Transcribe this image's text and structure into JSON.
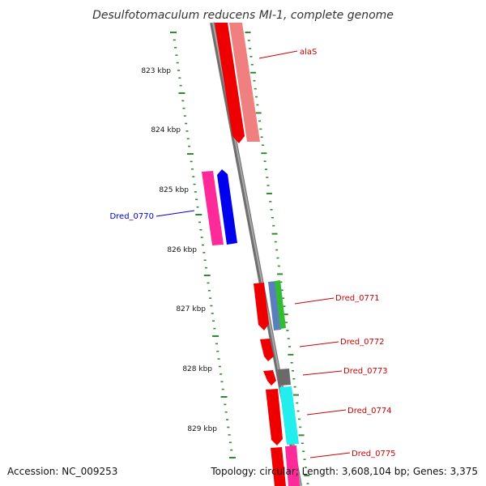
{
  "title": "Desulfotomaculum reducens MI-1, complete genome",
  "accession": "Accession: NC_009253",
  "summary": "Topology: circular; Length: 3,608,104 bp; Genes: 3,375",
  "colors": {
    "backbone": "#777777",
    "tick": "#2e8b2e",
    "forward_label": "#cc0000",
    "reverse_label": "#0000cc"
  },
  "ticks": [
    {
      "label": "823 kbp"
    },
    {
      "label": "824 kbp"
    },
    {
      "label": "825 kbp"
    },
    {
      "label": "826 kbp"
    },
    {
      "label": "827 kbp"
    },
    {
      "label": "828 kbp"
    },
    {
      "label": "829 kbp"
    }
  ],
  "genes": [
    {
      "name": "alaS",
      "color": "#cc0000"
    },
    {
      "name": "Dred_0770",
      "color": "#0000cc"
    },
    {
      "name": "Dred_0771",
      "color": "#cc0000"
    },
    {
      "name": "Dred_0772",
      "color": "#cc0000"
    },
    {
      "name": "Dred_0773",
      "color": "#cc0000"
    },
    {
      "name": "Dred_0774",
      "color": "#cc0000"
    },
    {
      "name": "Dred_0775",
      "color": "#cc0000"
    }
  ],
  "feature_colors": {
    "red": "#ee0000",
    "light_red": "#f08080",
    "pink": "#ff2a9a",
    "blue": "#0000ee",
    "steel": "#5a7fbf",
    "green": "#33bb33",
    "gray": "#6a6a6a",
    "cyan": "#22eeee",
    "magenta": "#ff2a9a"
  }
}
